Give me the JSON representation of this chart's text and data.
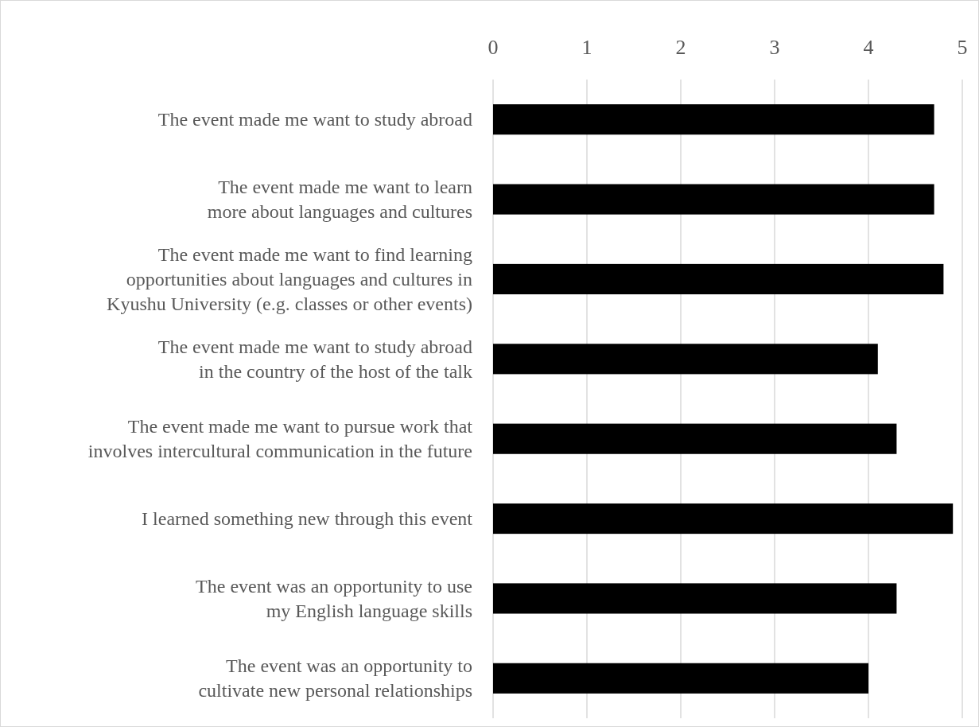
{
  "chart_data": {
    "type": "bar",
    "orientation": "horizontal",
    "categories": [
      "The event made me want to study abroad",
      "The event made me want to learn\nmore about languages and cultures",
      "The event made me want to find learning\nopportunities about languages and cultures in\nKyushu University (e.g. classes or other events)",
      "The event made me want to study abroad\nin the country of the host of the talk",
      "The event made me want to pursue work that\ninvolves intercultural communication in the future",
      "I learned something new through this event",
      "The event was an opportunity to use\nmy English language skills",
      "The event was an opportunity to\ncultivate new personal relationships"
    ],
    "values": [
      4.7,
      4.7,
      4.8,
      4.1,
      4.3,
      4.9,
      4.3,
      4.0
    ],
    "color": "#000000",
    "xlim": [
      0,
      5
    ],
    "xticks": [
      0,
      1,
      2,
      3,
      4,
      5
    ],
    "grid": "x"
  }
}
